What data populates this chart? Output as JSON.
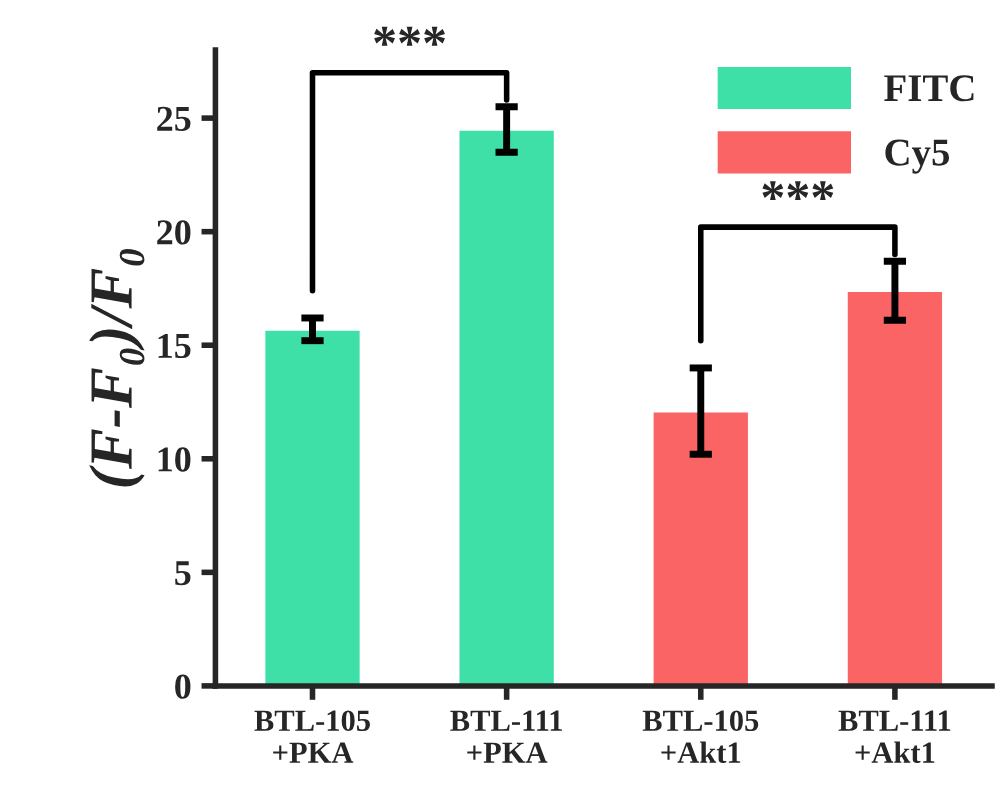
{
  "chart_data": {
    "type": "bar",
    "ylabel": "(F-F₀)/F₀",
    "categories": [
      "BTL-105\n+PKA",
      "BTL-111\n+PKA",
      "BTL-105\n+Akt1",
      "BTL-111\n+Akt1"
    ],
    "series": [
      {
        "name": "FITC",
        "color": "#3fe0a8",
        "values": [
          15.7,
          24.5,
          null,
          null
        ],
        "errors": [
          0.5,
          1.0,
          null,
          null
        ]
      },
      {
        "name": "Cy5",
        "color": "#fa6464",
        "values": [
          null,
          null,
          12.1,
          17.4
        ],
        "errors": [
          null,
          null,
          1.9,
          1.3
        ]
      }
    ],
    "ylim": [
      0,
      28
    ],
    "yticks": [
      0,
      5,
      10,
      15,
      20,
      25
    ],
    "grid": false,
    "legend": "top right",
    "annotations": [
      "***",
      "***"
    ]
  }
}
